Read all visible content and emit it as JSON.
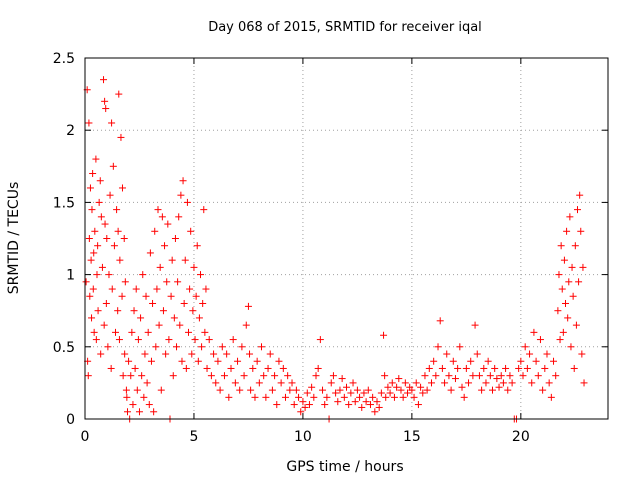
{
  "chart_data": {
    "type": "scatter",
    "title": "Day 068 of 2015, SRMTID for receiver iqal",
    "xlabel": "GPS time / hours",
    "ylabel": "SRMTID / TECUs",
    "xlim": [
      0,
      24
    ],
    "ylim": [
      0,
      2.5
    ],
    "x_ticks": [
      0,
      5,
      10,
      15,
      20
    ],
    "x_tick_labels": [
      "0",
      "5",
      "10",
      "15",
      "20"
    ],
    "y_ticks": [
      0,
      0.5,
      1,
      1.5,
      2,
      2.5
    ],
    "y_tick_labels": [
      "0",
      "0.5",
      "1",
      "1.5",
      "2",
      "2.5"
    ],
    "grid": true,
    "marker": "+",
    "color": "#ff0000",
    "series": [
      {
        "name": "SRMTID",
        "points": [
          [
            0.05,
            0.95
          ],
          [
            0.1,
            2.28
          ],
          [
            0.12,
            0.4
          ],
          [
            0.15,
            0.3
          ],
          [
            0.18,
            2.05
          ],
          [
            0.2,
            1.25
          ],
          [
            0.22,
            0.85
          ],
          [
            0.25,
            1.6
          ],
          [
            0.28,
            1.1
          ],
          [
            0.3,
            0.7
          ],
          [
            0.32,
            1.45
          ],
          [
            0.35,
            1.7
          ],
          [
            0.38,
            0.9
          ],
          [
            0.4,
            1.15
          ],
          [
            0.42,
            0.6
          ],
          [
            0.45,
            1.3
          ],
          [
            0.5,
            1.8
          ],
          [
            0.52,
            0.55
          ],
          [
            0.55,
            1.0
          ],
          [
            0.58,
            1.2
          ],
          [
            0.6,
            0.75
          ],
          [
            0.65,
            1.5
          ],
          [
            0.7,
            1.65
          ],
          [
            0.72,
            0.45
          ],
          [
            0.75,
            1.4
          ],
          [
            0.8,
            1.05
          ],
          [
            0.85,
            2.35
          ],
          [
            0.88,
            0.65
          ],
          [
            0.9,
            2.2
          ],
          [
            0.92,
            1.35
          ],
          [
            0.95,
            2.15
          ],
          [
            0.98,
            0.8
          ],
          [
            1.0,
            1.25
          ],
          [
            1.05,
            0.5
          ],
          [
            1.1,
            1.0
          ],
          [
            1.15,
            1.55
          ],
          [
            1.2,
            0.35
          ],
          [
            1.22,
            2.05
          ],
          [
            1.25,
            0.9
          ],
          [
            1.3,
            1.75
          ],
          [
            1.35,
            1.2
          ],
          [
            1.4,
            0.6
          ],
          [
            1.45,
            1.45
          ],
          [
            1.5,
            0.75
          ],
          [
            1.52,
            1.3
          ],
          [
            1.55,
            2.25
          ],
          [
            1.58,
            0.55
          ],
          [
            1.6,
            1.1
          ],
          [
            1.65,
            1.95
          ],
          [
            1.7,
            0.85
          ],
          [
            1.72,
            1.6
          ],
          [
            1.75,
            0.3
          ],
          [
            1.8,
            1.25
          ],
          [
            1.82,
            0.45
          ],
          [
            1.85,
            0.95
          ],
          [
            1.9,
            0.2
          ],
          [
            1.92,
            0.15
          ],
          [
            1.95,
            0.05
          ],
          [
            2.0,
            0.4
          ],
          [
            2.05,
            0.0
          ],
          [
            2.1,
            0.3
          ],
          [
            2.15,
            0.6
          ],
          [
            2.2,
            0.1
          ],
          [
            2.25,
            0.75
          ],
          [
            2.3,
            0.35
          ],
          [
            2.35,
            0.9
          ],
          [
            2.4,
            0.2
          ],
          [
            2.45,
            0.55
          ],
          [
            2.5,
            0.05
          ],
          [
            2.55,
            0.7
          ],
          [
            2.6,
            0.3
          ],
          [
            2.65,
            1.0
          ],
          [
            2.7,
            0.15
          ],
          [
            2.75,
            0.45
          ],
          [
            2.8,
            0.85
          ],
          [
            2.85,
            0.25
          ],
          [
            2.9,
            0.6
          ],
          [
            2.95,
            0.1
          ],
          [
            3.0,
            1.15
          ],
          [
            3.05,
            0.4
          ],
          [
            3.1,
            0.8
          ],
          [
            3.15,
            0.05
          ],
          [
            3.2,
            1.3
          ],
          [
            3.25,
            0.5
          ],
          [
            3.3,
            0.9
          ],
          [
            3.35,
            1.45
          ],
          [
            3.4,
            0.65
          ],
          [
            3.45,
            1.05
          ],
          [
            3.5,
            0.2
          ],
          [
            3.55,
            1.4
          ],
          [
            3.6,
            0.75
          ],
          [
            3.65,
            1.2
          ],
          [
            3.7,
            0.45
          ],
          [
            3.75,
            0.95
          ],
          [
            3.8,
            1.35
          ],
          [
            3.85,
            0.55
          ],
          [
            3.9,
            0.0
          ],
          [
            3.95,
            0.85
          ],
          [
            4.0,
            1.1
          ],
          [
            4.05,
            0.3
          ],
          [
            4.1,
            0.7
          ],
          [
            4.15,
            1.25
          ],
          [
            4.2,
            0.5
          ],
          [
            4.25,
            0.95
          ],
          [
            4.3,
            1.4
          ],
          [
            4.35,
            0.65
          ],
          [
            4.4,
            1.55
          ],
          [
            4.45,
            0.4
          ],
          [
            4.5,
            1.65
          ],
          [
            4.55,
            0.8
          ],
          [
            4.6,
            1.1
          ],
          [
            4.65,
            0.35
          ],
          [
            4.7,
            1.5
          ],
          [
            4.75,
            0.6
          ],
          [
            4.8,
            0.9
          ],
          [
            4.85,
            1.3
          ],
          [
            4.9,
            0.45
          ],
          [
            4.95,
            0.75
          ],
          [
            5.0,
            1.05
          ],
          [
            5.05,
            0.55
          ],
          [
            5.1,
            0.85
          ],
          [
            5.15,
            1.2
          ],
          [
            5.2,
            0.4
          ],
          [
            5.25,
            0.7
          ],
          [
            5.3,
            1.0
          ],
          [
            5.35,
            0.5
          ],
          [
            5.4,
            0.8
          ],
          [
            5.45,
            1.45
          ],
          [
            5.5,
            0.6
          ],
          [
            5.55,
            0.9
          ],
          [
            5.6,
            0.35
          ],
          [
            5.7,
            0.55
          ],
          [
            5.8,
            0.3
          ],
          [
            5.9,
            0.45
          ],
          [
            6.0,
            0.25
          ],
          [
            6.1,
            0.4
          ],
          [
            6.2,
            0.2
          ],
          [
            6.3,
            0.5
          ],
          [
            6.4,
            0.3
          ],
          [
            6.5,
            0.45
          ],
          [
            6.6,
            0.15
          ],
          [
            6.7,
            0.35
          ],
          [
            6.8,
            0.55
          ],
          [
            6.9,
            0.25
          ],
          [
            7.0,
            0.4
          ],
          [
            7.1,
            0.2
          ],
          [
            7.2,
            0.5
          ],
          [
            7.3,
            0.3
          ],
          [
            7.4,
            0.65
          ],
          [
            7.5,
            0.78
          ],
          [
            7.55,
            0.45
          ],
          [
            7.6,
            0.2
          ],
          [
            7.7,
            0.35
          ],
          [
            7.8,
            0.15
          ],
          [
            7.9,
            0.4
          ],
          [
            8.0,
            0.25
          ],
          [
            8.1,
            0.5
          ],
          [
            8.2,
            0.3
          ],
          [
            8.3,
            0.15
          ],
          [
            8.4,
            0.35
          ],
          [
            8.5,
            0.45
          ],
          [
            8.6,
            0.2
          ],
          [
            8.7,
            0.3
          ],
          [
            8.8,
            0.1
          ],
          [
            8.9,
            0.4
          ],
          [
            9.0,
            0.25
          ],
          [
            9.1,
            0.35
          ],
          [
            9.2,
            0.15
          ],
          [
            9.3,
            0.3
          ],
          [
            9.4,
            0.2
          ],
          [
            9.5,
            0.25
          ],
          [
            9.6,
            0.1
          ],
          [
            9.7,
            0.2
          ],
          [
            9.8,
            0.15
          ],
          [
            9.9,
            0.05
          ],
          [
            10.0,
            0.12
          ],
          [
            10.1,
            0.08
          ],
          [
            10.2,
            0.18
          ],
          [
            10.3,
            0.1
          ],
          [
            10.4,
            0.22
          ],
          [
            10.5,
            0.15
          ],
          [
            10.6,
            0.3
          ],
          [
            10.7,
            0.35
          ],
          [
            10.8,
            0.55
          ],
          [
            10.9,
            0.2
          ],
          [
            11.0,
            0.1
          ],
          [
            11.1,
            0.15
          ],
          [
            11.2,
            0.0
          ],
          [
            11.3,
            0.25
          ],
          [
            11.4,
            0.3
          ],
          [
            11.5,
            0.18
          ],
          [
            11.6,
            0.12
          ],
          [
            11.7,
            0.2
          ],
          [
            11.8,
            0.28
          ],
          [
            11.9,
            0.15
          ],
          [
            12.0,
            0.22
          ],
          [
            12.1,
            0.1
          ],
          [
            12.2,
            0.18
          ],
          [
            12.3,
            0.25
          ],
          [
            12.4,
            0.12
          ],
          [
            12.5,
            0.2
          ],
          [
            12.6,
            0.15
          ],
          [
            12.7,
            0.08
          ],
          [
            12.8,
            0.18
          ],
          [
            12.9,
            0.12
          ],
          [
            13.0,
            0.2
          ],
          [
            13.1,
            0.1
          ],
          [
            13.2,
            0.15
          ],
          [
            13.3,
            0.05
          ],
          [
            13.4,
            0.12
          ],
          [
            13.5,
            0.08
          ],
          [
            13.6,
            0.18
          ],
          [
            13.7,
            0.58
          ],
          [
            13.75,
            0.3
          ],
          [
            13.8,
            0.15
          ],
          [
            13.9,
            0.22
          ],
          [
            14.0,
            0.18
          ],
          [
            14.1,
            0.25
          ],
          [
            14.2,
            0.15
          ],
          [
            14.3,
            0.22
          ],
          [
            14.4,
            0.28
          ],
          [
            14.5,
            0.2
          ],
          [
            14.6,
            0.15
          ],
          [
            14.7,
            0.25
          ],
          [
            14.8,
            0.18
          ],
          [
            14.9,
            0.22
          ],
          [
            15.0,
            0.2
          ],
          [
            15.1,
            0.15
          ],
          [
            15.2,
            0.25
          ],
          [
            15.3,
            0.1
          ],
          [
            15.4,
            0.22
          ],
          [
            15.5,
            0.18
          ],
          [
            15.6,
            0.3
          ],
          [
            15.7,
            0.2
          ],
          [
            15.8,
            0.35
          ],
          [
            15.9,
            0.25
          ],
          [
            16.0,
            0.4
          ],
          [
            16.1,
            0.3
          ],
          [
            16.2,
            0.5
          ],
          [
            16.3,
            0.68
          ],
          [
            16.4,
            0.35
          ],
          [
            16.5,
            0.25
          ],
          [
            16.6,
            0.45
          ],
          [
            16.7,
            0.3
          ],
          [
            16.8,
            0.2
          ],
          [
            16.9,
            0.4
          ],
          [
            17.0,
            0.28
          ],
          [
            17.1,
            0.35
          ],
          [
            17.2,
            0.5
          ],
          [
            17.3,
            0.22
          ],
          [
            17.4,
            0.15
          ],
          [
            17.5,
            0.35
          ],
          [
            17.6,
            0.25
          ],
          [
            17.7,
            0.4
          ],
          [
            17.8,
            0.3
          ],
          [
            17.9,
            0.65
          ],
          [
            18.0,
            0.45
          ],
          [
            18.1,
            0.3
          ],
          [
            18.2,
            0.2
          ],
          [
            18.3,
            0.35
          ],
          [
            18.4,
            0.25
          ],
          [
            18.5,
            0.4
          ],
          [
            18.6,
            0.3
          ],
          [
            18.7,
            0.2
          ],
          [
            18.8,
            0.35
          ],
          [
            18.9,
            0.28
          ],
          [
            19.0,
            0.22
          ],
          [
            19.1,
            0.3
          ],
          [
            19.2,
            0.25
          ],
          [
            19.3,
            0.35
          ],
          [
            19.4,
            0.2
          ],
          [
            19.5,
            0.3
          ],
          [
            19.6,
            0.25
          ],
          [
            19.7,
            0.0
          ],
          [
            19.8,
            0.0
          ],
          [
            19.9,
            0.35
          ],
          [
            20.0,
            0.4
          ],
          [
            20.1,
            0.3
          ],
          [
            20.2,
            0.5
          ],
          [
            20.3,
            0.35
          ],
          [
            20.4,
            0.45
          ],
          [
            20.5,
            0.25
          ],
          [
            20.6,
            0.6
          ],
          [
            20.7,
            0.4
          ],
          [
            20.8,
            0.3
          ],
          [
            20.9,
            0.55
          ],
          [
            21.0,
            0.2
          ],
          [
            21.1,
            0.35
          ],
          [
            21.2,
            0.45
          ],
          [
            21.3,
            0.25
          ],
          [
            21.4,
            0.15
          ],
          [
            21.5,
            0.4
          ],
          [
            21.6,
            0.3
          ],
          [
            21.7,
            0.75
          ],
          [
            21.75,
            1.0
          ],
          [
            21.8,
            0.55
          ],
          [
            21.85,
            1.2
          ],
          [
            21.9,
            0.9
          ],
          [
            21.95,
            0.6
          ],
          [
            22.0,
            1.1
          ],
          [
            22.05,
            0.8
          ],
          [
            22.1,
            1.3
          ],
          [
            22.15,
            0.7
          ],
          [
            22.2,
            0.95
          ],
          [
            22.25,
            1.4
          ],
          [
            22.3,
            0.5
          ],
          [
            22.35,
            1.05
          ],
          [
            22.4,
            0.85
          ],
          [
            22.45,
            0.35
          ],
          [
            22.5,
            1.2
          ],
          [
            22.55,
            0.65
          ],
          [
            22.6,
            1.45
          ],
          [
            22.65,
            0.95
          ],
          [
            22.7,
            1.55
          ],
          [
            22.75,
            1.3
          ],
          [
            22.8,
            0.45
          ],
          [
            22.85,
            1.05
          ],
          [
            22.9,
            0.25
          ]
        ]
      }
    ]
  }
}
